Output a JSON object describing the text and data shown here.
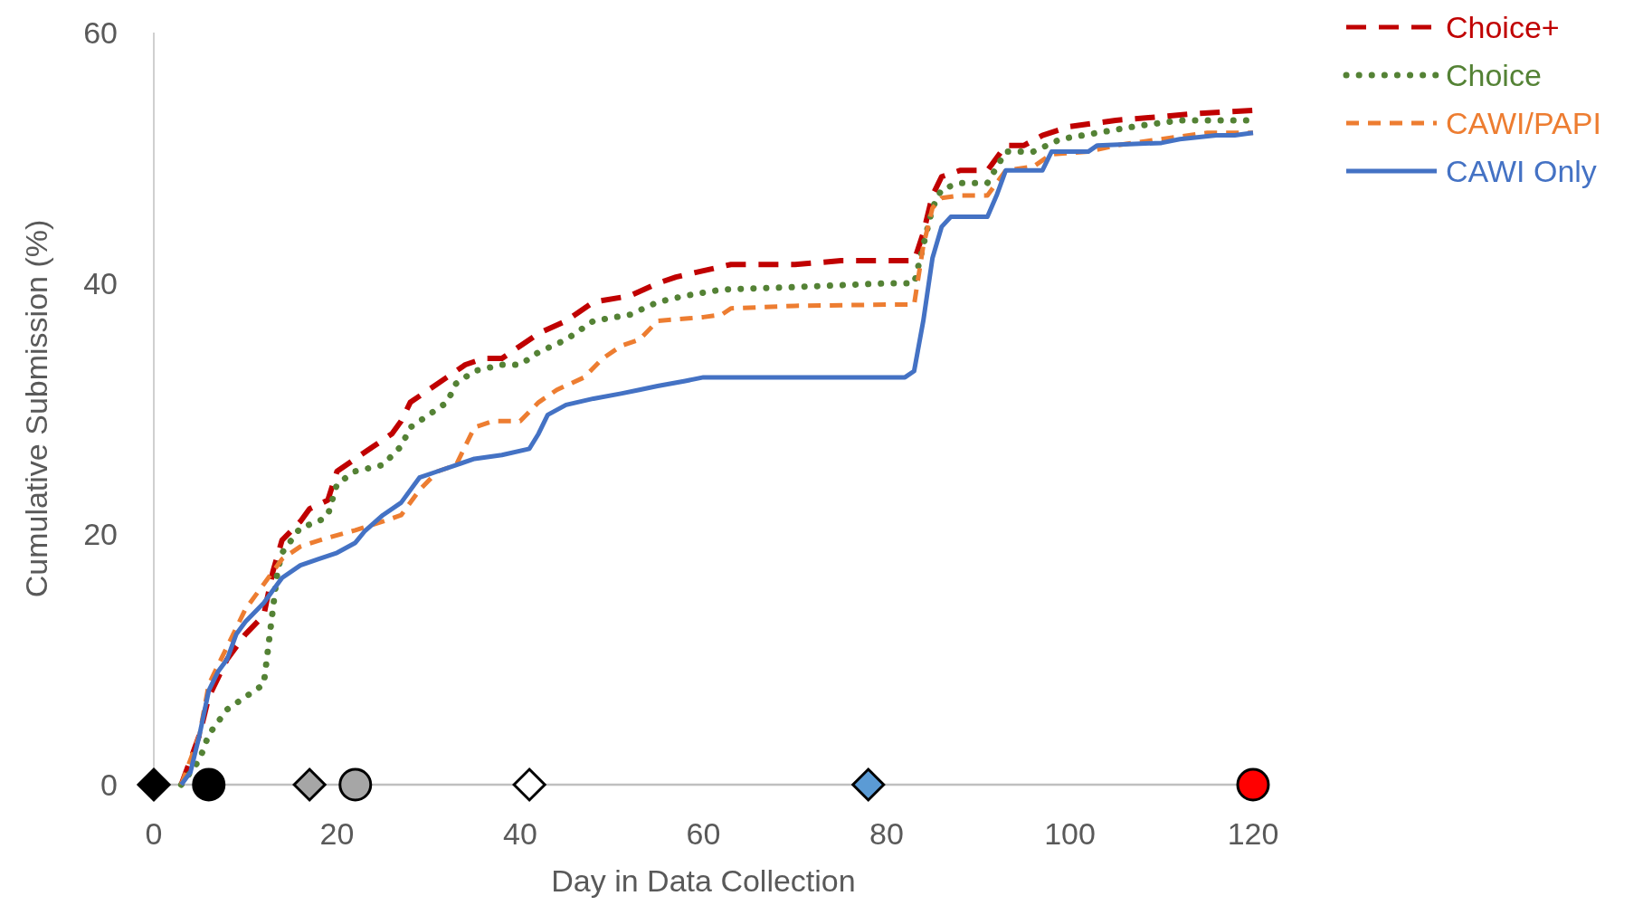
{
  "chart_data": {
    "type": "line",
    "xlabel": "Day in Data Collection",
    "ylabel": "Cumulative Submission  (%)",
    "xlim": [
      0,
      120
    ],
    "xticks": [
      0,
      20,
      40,
      60,
      80,
      100,
      120
    ],
    "ylim": [
      0,
      60
    ],
    "yticks": [
      0,
      20,
      40,
      60
    ],
    "grid": false,
    "legend": "top right",
    "series": [
      {
        "name": "Choice+",
        "color": "#c00000",
        "line_style": "dashed",
        "x": [
          3,
          4,
          5,
          6,
          8,
          10,
          12,
          13,
          14,
          16,
          17,
          19,
          20,
          22,
          24,
          26,
          27,
          28,
          30,
          32,
          34,
          36,
          38,
          40,
          42,
          45,
          48,
          52,
          55,
          57,
          60,
          63,
          70,
          75,
          83,
          84,
          85,
          86,
          88,
          91,
          93,
          95,
          97,
          100,
          105,
          110,
          113,
          120
        ],
        "values": [
          0,
          2,
          4,
          7,
          10,
          12,
          13.5,
          17,
          19.5,
          21,
          22,
          22.7,
          25,
          26,
          27,
          28,
          29,
          30.5,
          31.5,
          32.5,
          33.5,
          34,
          34,
          35,
          36,
          37,
          38.5,
          39,
          40,
          40.5,
          41,
          41.5,
          41.5,
          41.8,
          41.8,
          44,
          47,
          48.5,
          49,
          49,
          51,
          51,
          51.8,
          52.5,
          53,
          53.3,
          53.5,
          53.8
        ]
      },
      {
        "name": "Choice",
        "color": "#548235",
        "line_style": "dotted",
        "x": [
          3,
          5,
          6,
          7,
          8,
          10,
          12,
          13,
          13.5,
          14,
          16,
          18,
          19,
          20,
          22,
          25,
          27,
          28,
          30,
          32,
          33,
          35,
          38,
          40,
          42,
          45,
          48,
          52,
          55,
          58,
          62,
          70,
          80,
          83,
          84,
          85,
          86,
          88,
          91,
          93,
          96,
          99,
          103,
          107,
          112,
          116,
          120
        ],
        "values": [
          0,
          2,
          4,
          5,
          6,
          7,
          8,
          14,
          17,
          18.5,
          20.5,
          21,
          21.5,
          24,
          25,
          25.5,
          27,
          28.5,
          29.5,
          30.5,
          32,
          33,
          33.5,
          33.5,
          34.5,
          35.5,
          37,
          37.5,
          38.5,
          39,
          39.5,
          39.7,
          40,
          40,
          43,
          46,
          47.5,
          48,
          48,
          50.5,
          50.5,
          51.5,
          52,
          52.5,
          53,
          53,
          53
        ]
      },
      {
        "name": "CAWI/PAPI",
        "color": "#ed7d31",
        "line_style": "dashed",
        "x": [
          3,
          4,
          5,
          6,
          8,
          10,
          12,
          14,
          16,
          19,
          22,
          25,
          27,
          29,
          31,
          33,
          35,
          37,
          40,
          42,
          44,
          47,
          49,
          51,
          53,
          55,
          60,
          62,
          63,
          70,
          80,
          83,
          84,
          85,
          86,
          88,
          91,
          93,
          96,
          98,
          102,
          105,
          110,
          115,
          120
        ],
        "values": [
          0,
          2,
          4,
          8,
          11,
          14,
          16,
          18,
          19,
          19.7,
          20.3,
          21,
          21.5,
          23.5,
          25,
          25.5,
          28.5,
          29,
          29,
          30.5,
          31.5,
          32.5,
          34,
          35,
          35.5,
          37,
          37.3,
          37.5,
          38,
          38.2,
          38.3,
          38.3,
          43,
          46,
          46.8,
          47,
          47,
          49,
          49.3,
          50.3,
          50.5,
          51,
          51.5,
          52,
          52
        ]
      },
      {
        "name": "CAWI Only",
        "color": "#4472c4",
        "line_style": "solid",
        "x": [
          3,
          4,
          5,
          6,
          7,
          8,
          9,
          10,
          12,
          13,
          14,
          16,
          18,
          20,
          22,
          23,
          25,
          27,
          29,
          31,
          33,
          35,
          38,
          41,
          42,
          43,
          45,
          48,
          51,
          53,
          55,
          58,
          60,
          70,
          82,
          83,
          84,
          85,
          86,
          87,
          91,
          92,
          93,
          97,
          98,
          102,
          103,
          110,
          112,
          116,
          118,
          120
        ],
        "values": [
          0,
          1,
          4,
          7.5,
          9,
          10,
          12,
          13,
          14.5,
          15.5,
          16.5,
          17.5,
          18,
          18.5,
          19.3,
          20.2,
          21.5,
          22.5,
          24.5,
          25,
          25.5,
          26,
          26.3,
          26.8,
          28,
          29.5,
          30.3,
          30.8,
          31.2,
          31.5,
          31.8,
          32.2,
          32.5,
          32.5,
          32.5,
          33,
          37,
          42,
          44.5,
          45.3,
          45.3,
          47,
          49,
          49,
          50.5,
          50.5,
          51,
          51.2,
          51.5,
          51.8,
          51.8,
          52
        ]
      },
      {
        "type": "scatter",
        "marker": "diamond",
        "color": "#000000",
        "x": [
          0
        ],
        "values": [
          0
        ]
      },
      {
        "type": "scatter",
        "marker": "circle",
        "color": "#000000",
        "x": [
          6
        ],
        "values": [
          0
        ]
      },
      {
        "type": "scatter",
        "marker": "diamond",
        "color": "#a6a6a6",
        "x": [
          17
        ],
        "values": [
          0
        ]
      },
      {
        "type": "scatter",
        "marker": "circle",
        "color": "#a6a6a6",
        "x": [
          22
        ],
        "values": [
          0
        ]
      },
      {
        "type": "scatter",
        "marker": "diamond",
        "color": "#ffffff",
        "x": [
          41
        ],
        "values": [
          0
        ]
      },
      {
        "type": "scatter",
        "marker": "diamond",
        "color": "#5b9bd5",
        "x": [
          78
        ],
        "values": [
          0
        ]
      },
      {
        "type": "scatter",
        "marker": "circle",
        "color": "#ff0000",
        "x": [
          120
        ],
        "values": [
          0
        ]
      }
    ]
  }
}
